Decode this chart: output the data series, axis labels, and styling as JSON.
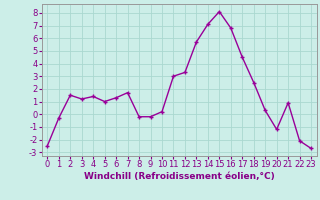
{
  "x": [
    0,
    1,
    2,
    3,
    4,
    5,
    6,
    7,
    8,
    9,
    10,
    11,
    12,
    13,
    14,
    15,
    16,
    17,
    18,
    19,
    20,
    21,
    22,
    23
  ],
  "y": [
    -2.5,
    -0.3,
    1.5,
    1.2,
    1.4,
    1.0,
    1.3,
    1.7,
    -0.2,
    -0.2,
    0.2,
    3.0,
    3.3,
    5.7,
    7.1,
    8.1,
    6.8,
    4.5,
    2.5,
    0.3,
    -1.2,
    0.9,
    -2.1,
    -2.7
  ],
  "line_color": "#990099",
  "marker": "+",
  "marker_size": 3,
  "bg_color": "#cceee8",
  "grid_color": "#aad8d0",
  "xlabel": "Windchill (Refroidissement éolien,°C)",
  "xlabel_fontsize": 6.5,
  "ylabel_ticks": [
    -3,
    -2,
    -1,
    0,
    1,
    2,
    3,
    4,
    5,
    6,
    7,
    8
  ],
  "xlim": [
    -0.5,
    23.5
  ],
  "ylim": [
    -3.3,
    8.7
  ],
  "tick_fontsize": 6,
  "line_width": 1.0,
  "text_color": "#880088"
}
